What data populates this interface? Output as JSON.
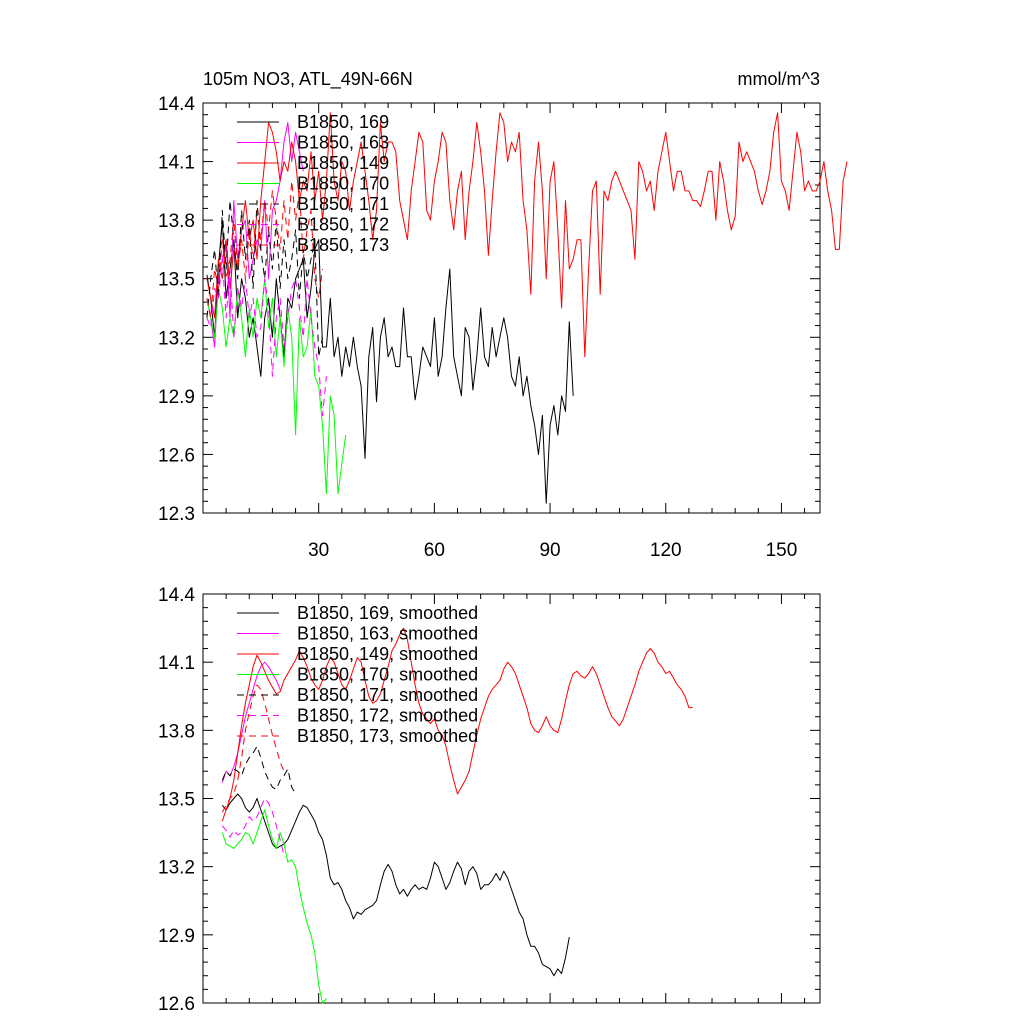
{
  "chart_data": [
    {
      "type": "line",
      "title": "105m NO3, ATL_49N-66N",
      "units": "mmol/m^3",
      "xlabel": "",
      "ylabel": "",
      "xlim": [
        0,
        160
      ],
      "ylim": [
        12.3,
        14.4
      ],
      "xticks": [
        30,
        60,
        90,
        120,
        150
      ],
      "xtick_labels": [
        "30",
        "60",
        "90",
        "120",
        "150"
      ],
      "yticks": [
        12.3,
        12.6,
        12.9,
        13.2,
        13.5,
        13.8,
        14.1,
        14.4
      ],
      "ytick_labels": [
        "12.3",
        "12.6",
        "12.9",
        "13.2",
        "13.5",
        "13.8",
        "14.1",
        "14.4"
      ],
      "legend_position": "top-left",
      "series": [
        {
          "name": "B1850, 169",
          "color": "#000000",
          "dash": "solid",
          "x_start": 1,
          "values": [
            13.52,
            13.4,
            13.2,
            13.56,
            13.8,
            13.4,
            13.55,
            13.7,
            13.3,
            13.5,
            13.4,
            13.2,
            13.3,
            13.15,
            13.0,
            13.3,
            13.4,
            13.2,
            13.5,
            13.3,
            13.1,
            13.4,
            13.35,
            13.5,
            13.55,
            13.6,
            13.3,
            13.45,
            13.65,
            13.7,
            13.15,
            13.15,
            13.4,
            13.1,
            13.2,
            13.0,
            13.15,
            13.05,
            13.2,
            13.05,
            12.95,
            12.58,
            13.1,
            13.25,
            12.87,
            13.2,
            13.3,
            13.1,
            13.15,
            13.05,
            13.05,
            13.35,
            13.1,
            13.1,
            12.88,
            13.0,
            13.15,
            13.1,
            13.05,
            13.3,
            13.0,
            13.1,
            13.35,
            13.55,
            13.1,
            13.0,
            12.9,
            13.25,
            13.2,
            12.93,
            13.1,
            13.35,
            13.1,
            13.05,
            13.25,
            13.1,
            13.2,
            13.3,
            13.2,
            13.0,
            12.95,
            13.1,
            12.9,
            13.0,
            12.85,
            12.75,
            12.6,
            12.8,
            12.35,
            12.75,
            12.85,
            12.7,
            12.9,
            12.82,
            13.28,
            12.9
          ]
        },
        {
          "name": "B1850, 163",
          "color": "#ff00ff",
          "dash": "solid",
          "x_start": 1,
          "values": [
            13.4,
            13.3,
            13.15,
            13.5,
            13.6,
            13.7,
            13.3,
            13.9,
            13.6,
            13.75,
            13.8,
            13.5,
            13.6,
            13.7,
            13.65,
            13.9,
            13.5,
            13.85,
            13.9,
            14.0,
            14.2,
            14.3,
            14.1,
            14.25,
            14.15,
            14.05
          ]
        },
        {
          "name": "B1850, 149",
          "color": "#ff0000",
          "dash": "solid",
          "x_start": 1,
          "values": [
            13.5,
            13.4,
            13.3,
            13.6,
            13.5,
            13.7,
            13.45,
            13.65,
            13.55,
            13.75,
            13.9,
            13.7,
            13.8,
            13.6,
            13.9,
            14.1,
            14.3,
            14.25,
            14.15,
            14.0,
            14.1,
            14.05,
            14.2,
            14.1,
            13.9,
            14.0,
            13.95,
            14.15,
            13.9,
            14.05,
            13.8,
            14.0,
            14.35,
            14.0,
            13.9,
            14.1,
            14.05,
            13.85,
            14.0,
            14.1,
            14.2,
            14.05,
            13.9,
            13.7,
            13.85,
            14.3,
            14.1,
            14.2,
            14.2,
            14.15,
            13.9,
            13.8,
            13.7,
            13.95,
            14.1,
            14.25,
            14.2,
            13.85,
            13.8,
            14.0,
            14.1,
            14.25,
            14.2,
            13.9,
            13.75,
            13.95,
            14.05,
            13.7,
            13.95,
            14.1,
            14.3,
            14.15,
            13.95,
            13.62,
            13.9,
            14.15,
            14.35,
            14.3,
            14.1,
            14.2,
            14.15,
            14.25,
            13.9,
            13.75,
            13.42,
            14.0,
            14.2,
            13.95,
            13.5,
            14.0,
            14.1,
            13.75,
            13.35,
            13.9,
            13.55,
            13.6,
            13.7,
            13.7,
            13.1,
            13.55,
            13.95,
            14.0,
            13.42,
            13.95,
            13.9,
            14.0,
            14.05,
            14.0,
            13.95,
            13.9,
            13.85,
            13.6,
            14.1,
            14.05,
            13.95,
            14.0,
            13.85,
            14.05,
            14.15,
            14.25,
            14.1,
            13.95,
            14.05,
            14.05,
            13.95,
            13.95,
            13.9,
            13.9,
            13.87,
            13.95,
            14.05,
            14.05,
            13.8,
            14.1,
            14.0,
            13.85,
            13.75,
            13.82,
            14.2,
            14.1,
            14.15,
            14.1,
            14.05,
            13.95,
            13.88,
            13.95,
            14.05,
            14.25,
            14.35,
            14.0,
            13.95,
            13.85,
            14.05,
            14.25,
            14.15,
            13.95,
            14.0,
            13.95,
            13.95,
            14.0,
            14.1,
            13.95,
            13.85,
            13.65,
            13.65,
            14.0,
            14.1
          ]
        },
        {
          "name": "B1850, 170",
          "color": "#00ff00",
          "dash": "solid",
          "x_start": 1,
          "values": [
            13.4,
            13.3,
            13.2,
            13.45,
            13.35,
            13.15,
            13.3,
            13.2,
            13.45,
            13.3,
            13.1,
            13.35,
            13.2,
            13.4,
            13.3,
            13.5,
            13.25,
            13.4,
            13.1,
            13.3,
            13.05,
            13.35,
            13.2,
            12.7,
            13.3,
            13.1,
            13.15,
            13.35,
            13.0,
            12.95,
            12.75,
            12.4,
            12.9,
            12.8,
            12.4,
            12.55,
            12.7
          ]
        },
        {
          "name": "B1850, 171",
          "color": "#000000",
          "dash": "dash",
          "x_start": 1,
          "values": [
            13.3,
            13.5,
            13.65,
            13.4,
            13.85,
            13.55,
            13.9,
            13.7,
            13.5,
            13.85,
            13.6,
            13.8,
            13.45,
            13.9,
            13.65,
            13.5,
            13.75,
            13.55,
            13.8,
            13.45,
            13.7,
            13.5,
            13.6,
            13.75,
            13.4,
            13.65,
            13.5,
            13.6,
            13.7,
            13.1,
            13.2
          ]
        },
        {
          "name": "B1850, 172",
          "color": "#ff00ff",
          "dash": "dash",
          "x_start": 1,
          "values": [
            13.3,
            13.25,
            13.45,
            13.4,
            13.6,
            13.3,
            13.55,
            13.2,
            13.45,
            13.35,
            13.5,
            13.3,
            13.4,
            13.2,
            13.25,
            13.5,
            13.35,
            13.0,
            13.3,
            13.4,
            13.15,
            13.3,
            13.45,
            13.5,
            13.35,
            13.2,
            13.5,
            13.3,
            13.15,
            13.05,
            12.8,
            13.0
          ]
        },
        {
          "name": "B1850, 173",
          "color": "#ff0000",
          "dash": "dash",
          "x_start": 1,
          "values": [
            13.4,
            13.3,
            13.55,
            13.45,
            13.7,
            13.5,
            13.6,
            13.8,
            13.55,
            13.7,
            13.5,
            13.75,
            13.6,
            13.85,
            13.7,
            13.9,
            13.75,
            13.95,
            13.8,
            13.65,
            13.9,
            13.7,
            14.0,
            13.8,
            13.95,
            13.6,
            13.75,
            13.85,
            13.5,
            13.4,
            13.55
          ]
        }
      ]
    },
    {
      "type": "line",
      "title": "",
      "xlabel": "",
      "ylabel": "",
      "xlim": [
        0,
        160
      ],
      "ylim": [
        12.6,
        14.4
      ],
      "xticks": [
        30,
        60,
        90,
        120,
        150
      ],
      "xtick_labels": [],
      "yticks": [
        12.6,
        12.9,
        13.2,
        13.5,
        13.8,
        14.1,
        14.4
      ],
      "ytick_labels": [
        "12.6",
        "12.9",
        "13.2",
        "13.5",
        "13.8",
        "14.1",
        "14.4"
      ],
      "legend_position": "top-left",
      "series": [
        {
          "name": "B1850, 169, smoothed",
          "color": "#000000",
          "dash": "solid",
          "x_start": 5,
          "values": [
            13.47,
            13.45,
            13.48,
            13.5,
            13.52,
            13.5,
            13.46,
            13.44,
            13.46,
            13.5,
            13.45,
            13.4,
            13.35,
            13.3,
            13.28,
            13.29,
            13.3,
            13.32,
            13.36,
            13.4,
            13.44,
            13.47,
            13.46,
            13.43,
            13.4,
            13.35,
            13.32,
            13.25,
            13.15,
            13.12,
            13.13,
            13.1,
            13.05,
            13.02,
            12.97,
            13.0,
            12.99,
            13.01,
            13.02,
            13.03,
            13.05,
            13.12,
            13.18,
            13.21,
            13.18,
            13.12,
            13.08,
            13.1,
            13.07,
            13.1,
            13.12,
            13.1,
            13.11,
            13.1,
            13.15,
            13.22,
            13.2,
            13.15,
            13.1,
            13.13,
            13.18,
            13.22,
            13.19,
            13.12,
            13.18,
            13.2,
            13.17,
            13.1,
            13.12,
            13.12,
            13.14,
            13.17,
            13.14,
            13.18,
            13.15,
            13.1,
            13.05,
            13.0,
            12.97,
            12.9,
            12.85,
            12.85,
            12.82,
            12.77,
            12.76,
            12.75,
            12.72,
            12.75,
            12.73,
            12.8,
            12.89
          ]
        },
        {
          "name": "B1850, 163, smoothed",
          "color": "#ff00ff",
          "dash": "solid",
          "x_start": 5,
          "values": [
            13.57,
            13.62,
            13.6,
            13.64,
            13.7,
            13.78,
            13.86,
            13.92,
            13.98,
            14.04,
            14.08,
            14.1,
            14.08,
            14.05,
            14.02,
            13.98
          ]
        },
        {
          "name": "B1850, 149, smoothed",
          "color": "#ff0000",
          "dash": "solid",
          "x_start": 5,
          "values": [
            13.4,
            13.45,
            13.5,
            13.58,
            13.7,
            13.82,
            13.92,
            14.0,
            14.08,
            14.13,
            14.1,
            14.06,
            14.02,
            13.99,
            13.96,
            13.97,
            14.02,
            14.05,
            14.08,
            14.11,
            14.15,
            14.12,
            14.08,
            14.03,
            14.0,
            13.98,
            14.02,
            14.08,
            14.12,
            14.1,
            14.05,
            14.0,
            13.98,
            14.02,
            14.07,
            14.12,
            14.1,
            14.02,
            13.95,
            13.92,
            13.93,
            13.96,
            14.02,
            14.08,
            14.15,
            14.18,
            14.22,
            14.25,
            14.2,
            14.1,
            14.0,
            13.92,
            13.87,
            13.85,
            13.83,
            13.85,
            13.8,
            13.78,
            13.73,
            13.65,
            13.58,
            13.52,
            13.55,
            13.58,
            13.62,
            13.7,
            13.78,
            13.85,
            13.9,
            13.95,
            13.98,
            14.0,
            14.02,
            14.07,
            14.1,
            14.08,
            14.05,
            14.0,
            13.95,
            13.9,
            13.83,
            13.8,
            13.79,
            13.82,
            13.86,
            13.82,
            13.8,
            13.79,
            13.85,
            13.93,
            14.0,
            14.05,
            14.06,
            14.04,
            14.03,
            14.05,
            14.08,
            14.05,
            14.0,
            13.95,
            13.9,
            13.86,
            13.84,
            13.82,
            13.85,
            13.9,
            13.95,
            14.0,
            14.06,
            14.1,
            14.14,
            14.16,
            14.14,
            14.1,
            14.08,
            14.05,
            14.06,
            14.03,
            14.0,
            13.98,
            13.95,
            13.9,
            13.9
          ]
        },
        {
          "name": "B1850, 170, smoothed",
          "color": "#00ff00",
          "dash": "solid",
          "x_start": 5,
          "values": [
            13.35,
            13.3,
            13.29,
            13.28,
            13.3,
            13.32,
            13.35,
            13.34,
            13.3,
            13.35,
            13.4,
            13.45,
            13.38,
            13.32,
            13.28,
            13.35,
            13.3,
            13.22,
            13.23,
            13.2,
            13.1,
            13.02,
            12.95,
            12.9,
            12.82,
            12.68,
            12.6,
            12.62
          ]
        },
        {
          "name": "B1850, 171, smoothed",
          "color": "#000000",
          "dash": "dash",
          "x_start": 5,
          "values": [
            13.58,
            13.62,
            13.6,
            13.63,
            13.62,
            13.6,
            13.65,
            13.68,
            13.7,
            13.73,
            13.68,
            13.62,
            13.58,
            13.55,
            13.54,
            13.58,
            13.6,
            13.63,
            13.55,
            13.52
          ]
        },
        {
          "name": "B1850, 172, smoothed",
          "color": "#ff00ff",
          "dash": "dash",
          "x_start": 5,
          "values": [
            13.38,
            13.36,
            13.33,
            13.36,
            13.34,
            13.35,
            13.38,
            13.42,
            13.4,
            13.42,
            13.46,
            13.5,
            13.48,
            13.44,
            13.38,
            13.32,
            13.25
          ]
        },
        {
          "name": "B1850, 173, smoothed",
          "color": "#ff0000",
          "dash": "dash",
          "x_start": 5,
          "values": [
            13.44,
            13.47,
            13.5,
            13.52,
            13.58,
            13.68,
            13.8,
            13.88,
            13.95,
            14.0,
            13.98,
            13.92,
            13.85,
            13.78,
            13.72,
            13.66,
            13.62
          ]
        }
      ]
    }
  ]
}
